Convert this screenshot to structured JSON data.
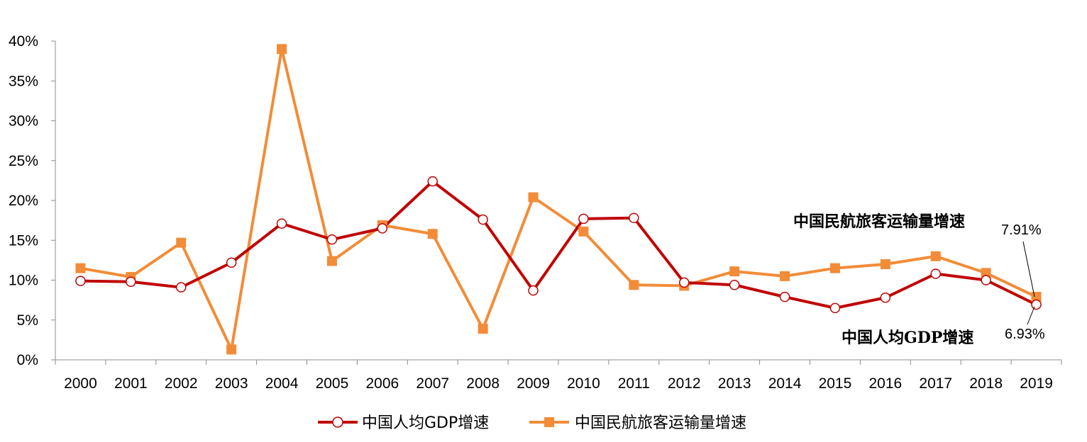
{
  "chart_data": {
    "type": "line",
    "categories": [
      "2000",
      "2001",
      "2002",
      "2003",
      "2004",
      "2005",
      "2006",
      "2007",
      "2008",
      "2009",
      "2010",
      "2011",
      "2012",
      "2013",
      "2014",
      "2015",
      "2016",
      "2017",
      "2018",
      "2019"
    ],
    "ylim": [
      0,
      40
    ],
    "yticks": [
      "0%",
      "5%",
      "10%",
      "15%",
      "20%",
      "25%",
      "30%",
      "35%",
      "40%"
    ],
    "grid": false,
    "legend_position": "bottom",
    "series": [
      {
        "name": "中国人均GDP增速",
        "color": "#C00000",
        "marker": "open-circle",
        "values": [
          9.9,
          9.8,
          9.1,
          12.2,
          17.1,
          15.1,
          16.5,
          22.4,
          17.6,
          8.7,
          17.7,
          17.8,
          9.7,
          9.4,
          7.9,
          6.5,
          7.8,
          10.8,
          10.0,
          6.93
        ]
      },
      {
        "name": "中国民航旅客运输量增速",
        "color": "#F28C38",
        "marker": "filled-square",
        "values": [
          11.5,
          10.4,
          14.7,
          1.3,
          39.0,
          12.4,
          16.9,
          15.8,
          3.9,
          20.4,
          16.1,
          9.4,
          9.3,
          11.1,
          10.5,
          11.5,
          12.0,
          13.0,
          10.9,
          7.91
        ]
      }
    ],
    "annotations": [
      {
        "text": "中国民航旅客运输量增速",
        "series": 1
      },
      {
        "text": "7.91%",
        "series": 1,
        "category": "2019"
      },
      {
        "text": "中国人均GDP增速",
        "series": 0
      },
      {
        "text": "6.93%",
        "series": 0,
        "category": "2019"
      }
    ]
  }
}
